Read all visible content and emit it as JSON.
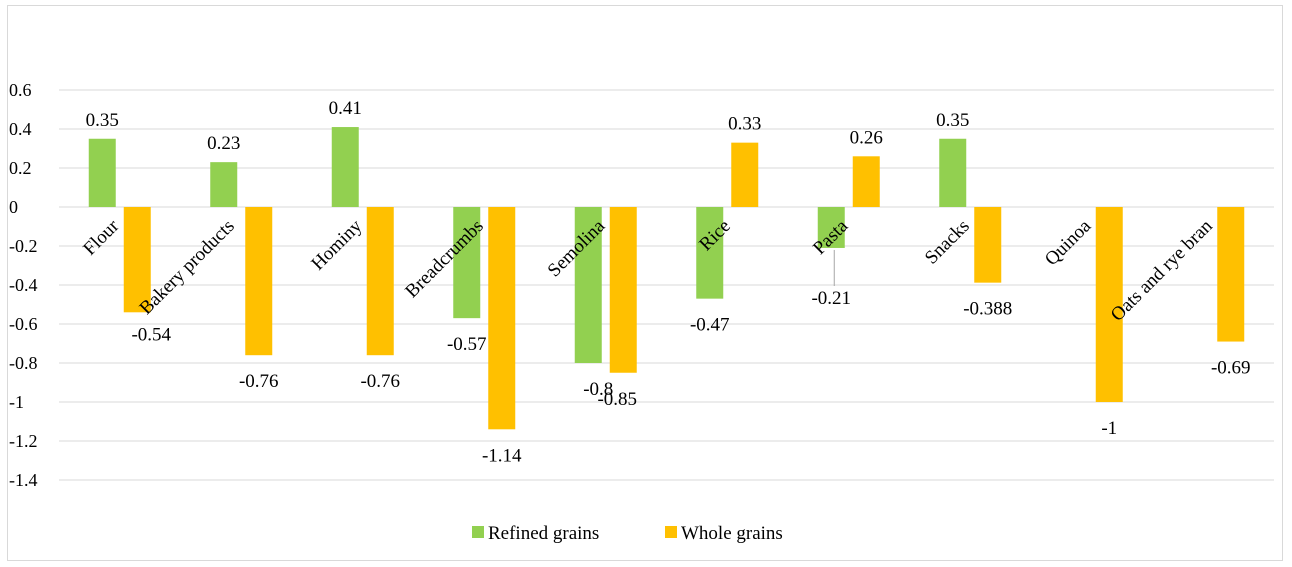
{
  "chart_data": {
    "type": "bar",
    "categories": [
      "Flour",
      "Bakery products",
      "Hominy",
      "Breadcrumbs",
      "Semolina",
      "Rice",
      "Pasta",
      "Snacks",
      "Quinoa",
      "Oats and rye bran"
    ],
    "series": [
      {
        "name": "Refined grains",
        "color": "#92d050",
        "values": [
          0.35,
          0.23,
          0.41,
          -0.57,
          -0.8,
          -0.47,
          -0.21,
          0.35,
          null,
          null
        ],
        "labels": [
          "0.35",
          "0.23",
          "0.41",
          "-0.57",
          "-0.8",
          "-0.47",
          "-0.21",
          "0.35",
          null,
          null
        ]
      },
      {
        "name": "Whole grains",
        "color": "#ffc000",
        "values": [
          -0.54,
          -0.76,
          -0.76,
          -1.14,
          -0.85,
          0.33,
          0.26,
          -0.388,
          -1,
          -0.69
        ],
        "labels": [
          "-0.54",
          "-0.76",
          "-0.76",
          "-1.14",
          "-0.85",
          "0.33",
          "0.26",
          "-0.388",
          "-1",
          "-0.69"
        ]
      }
    ],
    "ylim": [
      -1.4,
      0.6
    ],
    "yticks": [
      "0.6",
      "0.4",
      "0.2",
      "0",
      "-0.2",
      "-0.4",
      "-0.6",
      "-0.8",
      "-1",
      "-1.2",
      "-1.4"
    ],
    "grid": true,
    "legend_position": "bottom"
  }
}
